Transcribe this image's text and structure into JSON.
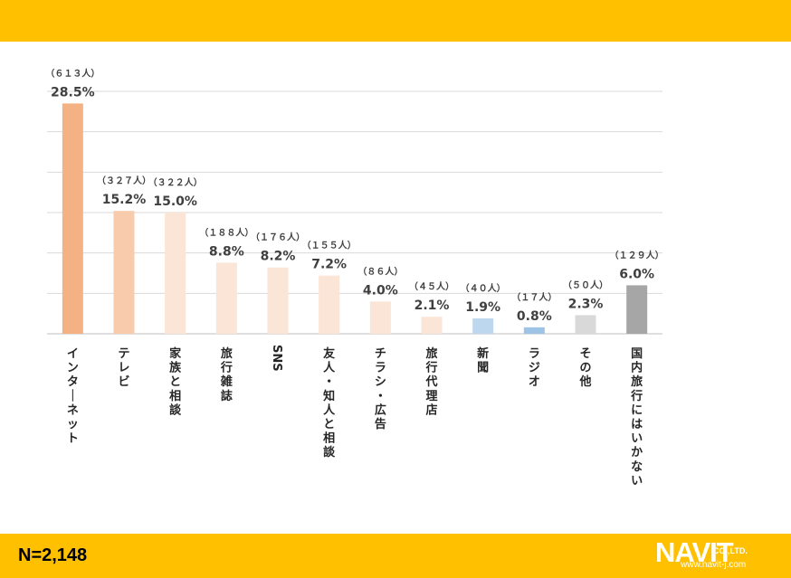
{
  "chart_data": {
    "type": "bar",
    "categories": [
      "インターネット",
      "テレビ",
      "家族と相談",
      "旅行雑誌",
      "SNS",
      "友人・知人と相談",
      "チラシ・広告",
      "旅行代理店",
      "新聞",
      "ラジオ",
      "その他",
      "国内旅行にはいかない"
    ],
    "values": [
      28.5,
      15.2,
      15.0,
      8.8,
      8.2,
      7.2,
      4.0,
      2.1,
      1.9,
      0.8,
      2.3,
      6.0
    ],
    "value_labels": [
      "28.5%",
      "15.2%",
      "15.0%",
      "8.8%",
      "8.2%",
      "7.2%",
      "4.0%",
      "2.1%",
      "1.9%",
      "0.8%",
      "2.3%",
      "6.0%"
    ],
    "counts": [
      "（６１３人）",
      "（３２７人）",
      "（３２２人）",
      "（１８８人）",
      "（１７６人）",
      "（１５５人）",
      "（８６人）",
      "（４５人）",
      "（４０人）",
      "（１７人）",
      "（５０人）",
      "（１２９人）"
    ],
    "colors": [
      "#F4B183",
      "#F8CBAD",
      "#FBE5D6",
      "#FBE5D6",
      "#FBE5D6",
      "#FBE5D6",
      "#FBE5D6",
      "#FBE5D6",
      "#BDD7EE",
      "#9DC3E6",
      "#D9D9D9",
      "#A6A6A6"
    ],
    "ylim": [
      0,
      30
    ],
    "grid": true,
    "title": "",
    "xlabel": "",
    "ylabel": ""
  },
  "footer": {
    "sample_size": "N=2,148"
  },
  "logo": {
    "brand": "NAVIT",
    "company": "CO.,LTD.",
    "url": "www.navit-j.com"
  },
  "theme": {
    "band_color": "#FFC000"
  }
}
